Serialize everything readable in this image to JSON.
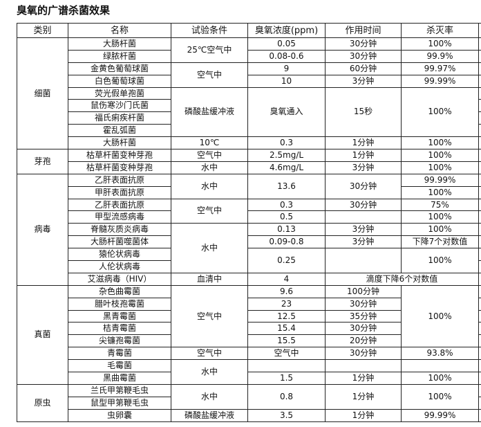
{
  "title": "臭氧的广谱杀菌效果",
  "headers": [
    "类别",
    "名称",
    "试验条件",
    "臭氧浓度(ppm)",
    "作用时间",
    "杀灭率",
    ""
  ],
  "groups": [
    {
      "category": "细菌",
      "rows": [
        [
          {
            "t": "大肠杆菌"
          },
          {
            "t": "25℃空气中",
            "rs": 2
          },
          {
            "t": "0.05"
          },
          {
            "t": "30分钟"
          },
          {
            "t": "100%"
          }
        ],
        [
          {
            "t": "绿脓杆菌"
          },
          {
            "t": "0.08-0.6"
          },
          {
            "t": "30分钟"
          },
          {
            "t": "99.9%"
          }
        ],
        [
          {
            "t": "金黄色葡萄球菌"
          },
          {
            "t": "空气中",
            "rs": 2
          },
          {
            "t": "9"
          },
          {
            "t": "60分钟"
          },
          {
            "t": "99.97%"
          }
        ],
        [
          {
            "t": "白色葡萄球菌"
          },
          {
            "t": "10"
          },
          {
            "t": "3分钟"
          },
          {
            "t": "99.99%"
          }
        ],
        [
          {
            "t": "荧光假单孢菌"
          },
          {
            "t": "磷酸盐缓冲液",
            "rs": 4
          },
          {
            "t": "臭氧通入",
            "rs": 4
          },
          {
            "t": "15秒",
            "rs": 4
          },
          {
            "t": "100%",
            "rs": 4
          }
        ],
        [
          {
            "t": "鼠伤寒沙门氏菌"
          }
        ],
        [
          {
            "t": "福氏痢疾杆菌"
          }
        ],
        [
          {
            "t": "霍乱弧菌"
          }
        ],
        [
          {
            "t": "大肠杆菌"
          },
          {
            "t": "10℃"
          },
          {
            "t": "0.3"
          },
          {
            "t": "1分钟"
          },
          {
            "t": "100%"
          }
        ]
      ]
    },
    {
      "category": "芽孢",
      "rows": [
        [
          {
            "t": "枯草杆菌变种芽孢"
          },
          {
            "t": "空气中"
          },
          {
            "t": "2.5mg/L"
          },
          {
            "t": "1分钟"
          },
          {
            "t": "100%"
          }
        ],
        [
          {
            "t": "枯草杆菌变种芽孢"
          },
          {
            "t": "水中"
          },
          {
            "t": "4.6mg/L"
          },
          {
            "t": "3分钟"
          },
          {
            "t": "100%"
          }
        ]
      ]
    },
    {
      "category": "病毒",
      "rows": [
        [
          {
            "t": "乙肝表面抗原"
          },
          {
            "t": "水中",
            "rs": 2
          },
          {
            "t": "13.6",
            "rs": 2
          },
          {
            "t": "30分钟",
            "rs": 2
          },
          {
            "t": "99.99%"
          }
        ],
        [
          {
            "t": "甲肝表面抗原"
          },
          {
            "t": "100%"
          }
        ],
        [
          {
            "t": "乙肝表面抗原"
          },
          {
            "t": "空气中",
            "rs": 2
          },
          {
            "t": "0.3"
          },
          {
            "t": "30分钟"
          },
          {
            "t": "75%"
          }
        ],
        [
          {
            "t": "甲型流感病毒"
          },
          {
            "t": "0.5"
          },
          {
            "t": ""
          },
          {
            "t": "100%"
          }
        ],
        [
          {
            "t": "脊髓灰质炎病毒"
          },
          {
            "t": "水中",
            "rs": 4
          },
          {
            "t": "0.13"
          },
          {
            "t": "3分钟"
          },
          {
            "t": "100%"
          }
        ],
        [
          {
            "t": "大肠杆菌噬菌体"
          },
          {
            "t": "0.09-0.8"
          },
          {
            "t": "3分钟"
          },
          {
            "t": "下降7个对数值"
          }
        ],
        [
          {
            "t": "猿伦状病毒"
          },
          {
            "t": "0.25",
            "rs": 2
          },
          {
            "t": "",
            "rs": 2
          },
          {
            "t": "100%",
            "rs": 2
          }
        ],
        [
          {
            "t": "人伦状病毒"
          }
        ],
        [
          {
            "t": "艾滋病毒（HIV）"
          },
          {
            "t": "血清中"
          },
          {
            "t": "4"
          },
          {
            "t": "滴度下降6个对数值",
            "cs": 2
          }
        ]
      ]
    },
    {
      "category": "真菌",
      "rows": [
        [
          {
            "t": "杂色曲霉菌"
          },
          {
            "t": "空气中",
            "rs": 5
          },
          {
            "t": "9.6"
          },
          {
            "t": "100分钟"
          },
          {
            "t": "100%",
            "rs": 5
          }
        ],
        [
          {
            "t": "腊叶枝孢霉菌"
          },
          {
            "t": "23"
          },
          {
            "t": "30分钟"
          }
        ],
        [
          {
            "t": "黑青霉菌"
          },
          {
            "t": "12.5"
          },
          {
            "t": "35分钟"
          }
        ],
        [
          {
            "t": "桔青霉菌"
          },
          {
            "t": "15.4"
          },
          {
            "t": "30分钟"
          }
        ],
        [
          {
            "t": "尖镰孢霉菌"
          },
          {
            "t": "15.5"
          },
          {
            "t": "20分钟"
          }
        ],
        [
          {
            "t": "青霉菌"
          },
          {
            "t": "空气中"
          },
          {
            "t": "空气中"
          },
          {
            "t": "30分钟"
          },
          {
            "t": "93.8%"
          }
        ],
        [
          {
            "t": "毛霉菌"
          },
          {
            "t": "水中",
            "rs": 2
          },
          {
            "t": ""
          },
          {
            "t": ""
          },
          {
            "t": ""
          }
        ],
        [
          {
            "t": "黑曲霉菌"
          },
          {
            "t": "1.5"
          },
          {
            "t": "1分钟"
          },
          {
            "t": "100%"
          }
        ]
      ]
    },
    {
      "category": "原虫",
      "rows": [
        [
          {
            "t": "兰氏甲第鞭毛虫"
          },
          {
            "t": "水中",
            "rs": 2
          },
          {
            "t": "0.8",
            "rs": 2
          },
          {
            "t": "1分钟",
            "rs": 2
          },
          {
            "t": "100%",
            "rs": 2
          }
        ],
        [
          {
            "t": "鼠型甲第鞭毛虫"
          }
        ],
        [
          {
            "t": "虫卵囊"
          },
          {
            "t": "磷酸盐缓冲液"
          },
          {
            "t": "3.5"
          },
          {
            "t": "1分钟"
          },
          {
            "t": "99.99%"
          }
        ]
      ]
    }
  ]
}
